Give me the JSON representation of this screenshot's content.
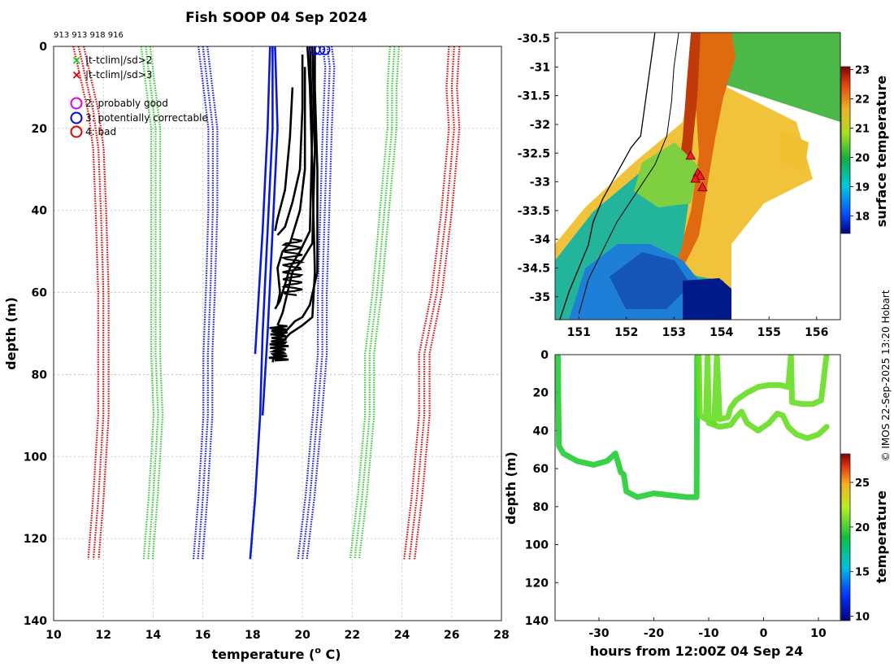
{
  "title": "Fish SOOP 04 Sep 2024",
  "platform_ids": "913 913 918 916",
  "credit": "© IMOS 22-Sep-2025 13:20 Hobart",
  "chart_data": [
    {
      "id": "profiles",
      "type": "line",
      "xlabel": "temperature (⁰ C)",
      "xlabel_text": "temperature (",
      "xlabel_sup": "o",
      "xlabel_end": " C)",
      "ylabel": "depth (m)",
      "xlim": [
        10,
        28
      ],
      "ylim": [
        0,
        140
      ],
      "x_ticks": [
        "10",
        "12",
        "14",
        "16",
        "18",
        "20",
        "22",
        "24",
        "26",
        "28"
      ],
      "y_ticks": [
        "0",
        "20",
        "40",
        "60",
        "80",
        "100",
        "120",
        "140"
      ],
      "legend": [
        {
          "marker": "x",
          "color": "#22cc22",
          "text": "|t-tclim|/sd>2"
        },
        {
          "marker": "x",
          "color": "#dd0000",
          "text": "|t-tclim|/sd>3"
        },
        {
          "marker": "o",
          "color": "#dd00dd",
          "text": "2: probably good"
        },
        {
          "marker": "o",
          "color": "#0000dd",
          "text": "3: potentially correctable"
        },
        {
          "marker": "o",
          "color": "#dd0000",
          "text": "4: bad"
        }
      ],
      "climatology_series": [
        {
          "name": "red-left",
          "color": "#dd0000",
          "points": [
            [
              11.0,
              0
            ],
            [
              11.3,
              8
            ],
            [
              11.6,
              16
            ],
            [
              11.8,
              25
            ],
            [
              11.9,
              40
            ],
            [
              12.0,
              60
            ],
            [
              12.0,
              75
            ],
            [
              12.0,
              90
            ],
            [
              11.8,
              110
            ],
            [
              11.6,
              125
            ]
          ],
          "spread": 0.35
        },
        {
          "name": "green-left",
          "color": "#33cc33",
          "points": [
            [
              13.7,
              0
            ],
            [
              13.9,
              10
            ],
            [
              14.1,
              20
            ],
            [
              14.1,
              40
            ],
            [
              14.1,
              60
            ],
            [
              14.1,
              75
            ],
            [
              14.2,
              90
            ],
            [
              14.0,
              110
            ],
            [
              13.8,
              125
            ]
          ],
          "spread": 0.3
        },
        {
          "name": "blue-left",
          "color": "#1111dd",
          "points": [
            [
              16.0,
              0
            ],
            [
              16.2,
              10
            ],
            [
              16.4,
              20
            ],
            [
              16.4,
              40
            ],
            [
              16.3,
              60
            ],
            [
              16.2,
              75
            ],
            [
              16.2,
              90
            ],
            [
              16.0,
              110
            ],
            [
              15.8,
              125
            ]
          ],
          "spread": 0.3
        },
        {
          "name": "blue-right",
          "color": "#1111dd",
          "points": [
            [
              21.0,
              0
            ],
            [
              21.1,
              5
            ],
            [
              21.0,
              20
            ],
            [
              20.9,
              40
            ],
            [
              20.8,
              60
            ],
            [
              20.8,
              75
            ],
            [
              20.6,
              90
            ],
            [
              20.3,
              110
            ],
            [
              20.0,
              125
            ]
          ],
          "spread": 0.3
        },
        {
          "name": "green-right",
          "color": "#33cc33",
          "points": [
            [
              23.7,
              0
            ],
            [
              23.6,
              10
            ],
            [
              23.6,
              20
            ],
            [
              23.3,
              40
            ],
            [
              23.0,
              60
            ],
            [
              22.7,
              75
            ],
            [
              22.7,
              90
            ],
            [
              22.4,
              110
            ],
            [
              22.1,
              125
            ]
          ],
          "spread": 0.3
        },
        {
          "name": "red-right",
          "color": "#dd0000",
          "points": [
            [
              26.1,
              0
            ],
            [
              26.0,
              10
            ],
            [
              26.1,
              20
            ],
            [
              25.8,
              40
            ],
            [
              25.4,
              60
            ],
            [
              24.9,
              75
            ],
            [
              24.9,
              90
            ],
            [
              24.6,
              110
            ],
            [
              24.3,
              125
            ]
          ],
          "spread": 0.35
        }
      ],
      "blue_profiles": [
        [
          [
            18.8,
            0
          ],
          [
            18.8,
            20
          ],
          [
            18.6,
            45
          ],
          [
            18.4,
            70
          ],
          [
            18.3,
            90
          ],
          [
            18.1,
            110
          ],
          [
            17.9,
            125
          ]
        ],
        [
          [
            18.9,
            0
          ],
          [
            19.0,
            20
          ],
          [
            18.8,
            45
          ],
          [
            18.6,
            70
          ],
          [
            18.4,
            90
          ]
        ],
        [
          [
            18.7,
            0
          ],
          [
            18.6,
            20
          ],
          [
            18.4,
            45
          ],
          [
            18.1,
            75
          ]
        ]
      ],
      "black_profiles": [
        [
          [
            20.2,
            0
          ],
          [
            20.3,
            10
          ],
          [
            20.4,
            30
          ],
          [
            20.5,
            55
          ],
          [
            20.4,
            66
          ],
          [
            20.0,
            68
          ],
          [
            19.5,
            70
          ],
          [
            19.2,
            72
          ],
          [
            18.9,
            75
          ],
          [
            18.8,
            77
          ]
        ],
        [
          [
            20.5,
            0
          ],
          [
            20.5,
            10
          ],
          [
            20.6,
            30
          ],
          [
            20.6,
            55
          ],
          [
            20.3,
            63
          ],
          [
            20.0,
            66
          ],
          [
            19.7,
            67
          ],
          [
            19.4,
            69
          ],
          [
            19.1,
            71
          ]
        ],
        [
          [
            20.0,
            2
          ],
          [
            20.0,
            15
          ],
          [
            19.9,
            30
          ],
          [
            19.6,
            38
          ],
          [
            19.3,
            44
          ],
          [
            19.0,
            46
          ]
        ],
        [
          [
            19.6,
            10
          ],
          [
            19.5,
            22
          ],
          [
            19.3,
            35
          ],
          [
            19.0,
            42
          ],
          [
            18.9,
            45
          ]
        ],
        [
          [
            20.3,
            0
          ],
          [
            20.4,
            20
          ],
          [
            20.3,
            45
          ],
          [
            19.9,
            50
          ],
          [
            19.5,
            54
          ],
          [
            19.3,
            58
          ],
          [
            19.1,
            62
          ],
          [
            18.9,
            64
          ]
        ],
        [
          [
            20.4,
            0
          ],
          [
            20.5,
            25
          ],
          [
            20.4,
            48
          ],
          [
            20.0,
            52
          ],
          [
            19.6,
            55
          ],
          [
            19.4,
            60
          ],
          [
            19.2,
            65
          ],
          [
            19.0,
            68
          ]
        ],
        [
          [
            20.1,
            5
          ],
          [
            20.1,
            30
          ],
          [
            19.9,
            40
          ],
          [
            19.5,
            48
          ],
          [
            19.2,
            50
          ],
          [
            19.0,
            54
          ],
          [
            19.1,
            60
          ],
          [
            19.0,
            63
          ]
        ]
      ],
      "flag_circles": [
        [
          20.5,
          0.8
        ],
        [
          20.7,
          0.8
        ],
        [
          20.9,
          0.8
        ]
      ]
    },
    {
      "id": "sst-map",
      "type": "heatmap",
      "xlim": [
        150.5,
        156.5
      ],
      "ylim": [
        -35.4,
        -30.4
      ],
      "x_ticks": [
        "151",
        "152",
        "153",
        "154",
        "155",
        "156"
      ],
      "y_ticks": [
        "-30.5",
        "-31",
        "-31.5",
        "-32",
        "-32.5",
        "-33",
        "-33.5",
        "-34",
        "-34.5",
        "-35"
      ],
      "colorbar_label": "surface temperature",
      "colorbar_range": [
        17.4,
        23.1
      ],
      "colorbar_ticks": [
        "18",
        "19",
        "20",
        "21",
        "22",
        "23"
      ],
      "stations": [
        [
          153.35,
          -32.55
        ],
        [
          153.5,
          -32.85
        ],
        [
          153.55,
          -32.9
        ],
        [
          153.45,
          -32.95
        ],
        [
          153.6,
          -33.1
        ]
      ],
      "coastline": [
        [
          152.6,
          -30.4
        ],
        [
          152.5,
          -31.0
        ],
        [
          152.4,
          -31.6
        ],
        [
          152.3,
          -32.2
        ],
        [
          152.1,
          -32.4
        ],
        [
          151.9,
          -32.7
        ],
        [
          151.7,
          -33.0
        ],
        [
          151.5,
          -33.3
        ],
        [
          151.3,
          -33.7
        ],
        [
          151.2,
          -34.1
        ],
        [
          151.0,
          -34.5
        ],
        [
          150.8,
          -34.9
        ],
        [
          150.6,
          -35.4
        ]
      ],
      "shelf_line": [
        [
          153.1,
          -30.4
        ],
        [
          153.0,
          -31.0
        ],
        [
          152.95,
          -31.6
        ],
        [
          152.85,
          -32.2
        ],
        [
          152.6,
          -32.7
        ],
        [
          152.2,
          -33.2
        ],
        [
          151.8,
          -33.7
        ],
        [
          151.5,
          -34.2
        ],
        [
          151.2,
          -34.7
        ],
        [
          151.0,
          -35.3
        ]
      ]
    },
    {
      "id": "depth-time",
      "type": "scatter",
      "xlabel": "hours from 12:00Z 04 Sep 24",
      "ylabel": "depth (m)",
      "xlim": [
        -38,
        14
      ],
      "ylim": [
        0,
        140
      ],
      "x_ticks": [
        "-30",
        "-20",
        "-10",
        "0",
        "10"
      ],
      "y_ticks": [
        "0",
        "20",
        "40",
        "60",
        "80",
        "100",
        "120",
        "140"
      ],
      "colorbar_label": "temperature",
      "colorbar_range": [
        9.5,
        28.2
      ],
      "colorbar_ticks": [
        "10",
        "15",
        "20",
        "25"
      ],
      "tracks": [
        {
          "temp": 19.5,
          "points": [
            [
              -37.5,
              0
            ],
            [
              -37.3,
              48
            ],
            [
              -36.5,
              52
            ],
            [
              -34,
              56
            ],
            [
              -31,
              58
            ],
            [
              -28.5,
              56
            ],
            [
              -27,
              52
            ],
            [
              -26.5,
              57
            ],
            [
              -26,
              62
            ],
            [
              -25.5,
              63
            ],
            [
              -25,
              72
            ],
            [
              -23,
              75
            ],
            [
              -20,
              73
            ],
            [
              -17,
              74
            ],
            [
              -14,
              75
            ],
            [
              -12.2,
              75
            ],
            [
              -12.1,
              0
            ]
          ]
        },
        {
          "temp": 21.0,
          "points": [
            [
              -11.8,
              0
            ],
            [
              -11.6,
              32
            ],
            [
              -10.5,
              34
            ],
            [
              -10.2,
              0
            ],
            [
              -10,
              33
            ],
            [
              -9,
              36
            ],
            [
              -8.5,
              0
            ],
            [
              -8,
              34
            ],
            [
              -6.5,
              33
            ],
            [
              -6,
              28
            ],
            [
              -5,
              24
            ],
            [
              -3,
              20
            ],
            [
              -1,
              17
            ],
            [
              1,
              16
            ],
            [
              3,
              16
            ],
            [
              4.5,
              17
            ],
            [
              5,
              0
            ],
            [
              5.2,
              25
            ],
            [
              7,
              26
            ],
            [
              9,
              26
            ],
            [
              10.5,
              24
            ],
            [
              11.5,
              0
            ]
          ]
        },
        {
          "temp": 20.0,
          "points": [
            [
              -10,
              36
            ],
            [
              -8,
              38
            ],
            [
              -6,
              37
            ],
            [
              -5,
              33
            ],
            [
              -4,
              30
            ],
            [
              -3,
              36
            ],
            [
              -1,
              40
            ],
            [
              1,
              36
            ],
            [
              2.5,
              31
            ],
            [
              3.5,
              32
            ],
            [
              4.5,
              38
            ],
            [
              6,
              42
            ],
            [
              8,
              44
            ],
            [
              10,
              42
            ],
            [
              11.5,
              38
            ]
          ]
        }
      ]
    }
  ]
}
